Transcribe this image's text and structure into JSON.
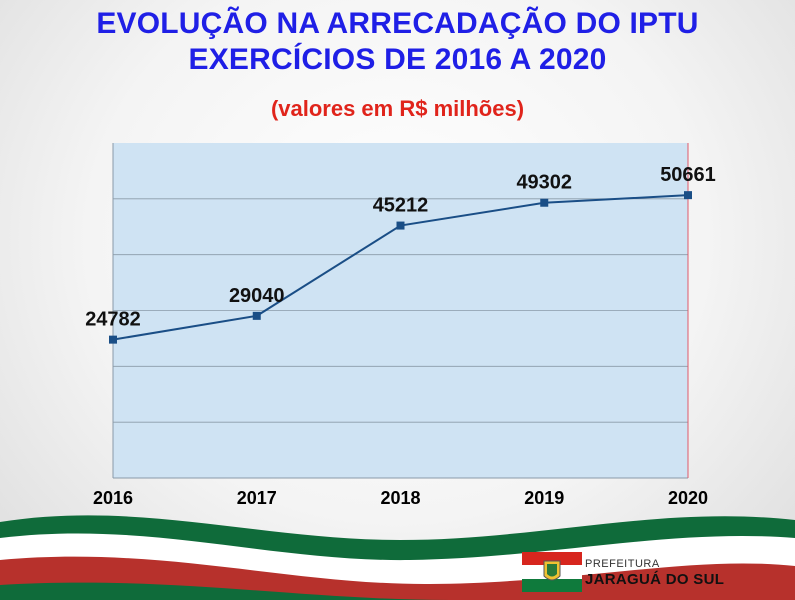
{
  "title_line1": "EVOLUÇÃO NA ARRECADAÇÃO DO IPTU",
  "title_line2": "EXERCÍCIOS DE 2016 A 2020",
  "subtitle": "(valores em R$ milhões)",
  "logo": {
    "line1": "PREFEITURA",
    "line2": "JARAGUÁ DO SUL"
  },
  "colors": {
    "title": "#1f1fe6",
    "subtitle": "#e0241b",
    "plot_bg": "#cfe3f3",
    "line": "#1a4e86",
    "wave_green": "#0f6b3a",
    "wave_red": "#b7312c"
  },
  "chart_data": {
    "type": "line",
    "categories": [
      "2016",
      "2017",
      "2018",
      "2019",
      "2020"
    ],
    "values": [
      24782,
      29040,
      45212,
      49302,
      50661
    ],
    "title": "EVOLUÇÃO NA ARRECADAÇÃO DO IPTU EXERCÍCIOS DE 2016 A 2020",
    "subtitle": "(valores em R$ milhões)",
    "xlabel": "",
    "ylabel": "",
    "ylim": [
      0,
      60000
    ],
    "y_gridlines": [
      10000,
      20000,
      30000,
      40000,
      50000
    ],
    "data_labels": true,
    "grid": true,
    "legend": "none"
  }
}
